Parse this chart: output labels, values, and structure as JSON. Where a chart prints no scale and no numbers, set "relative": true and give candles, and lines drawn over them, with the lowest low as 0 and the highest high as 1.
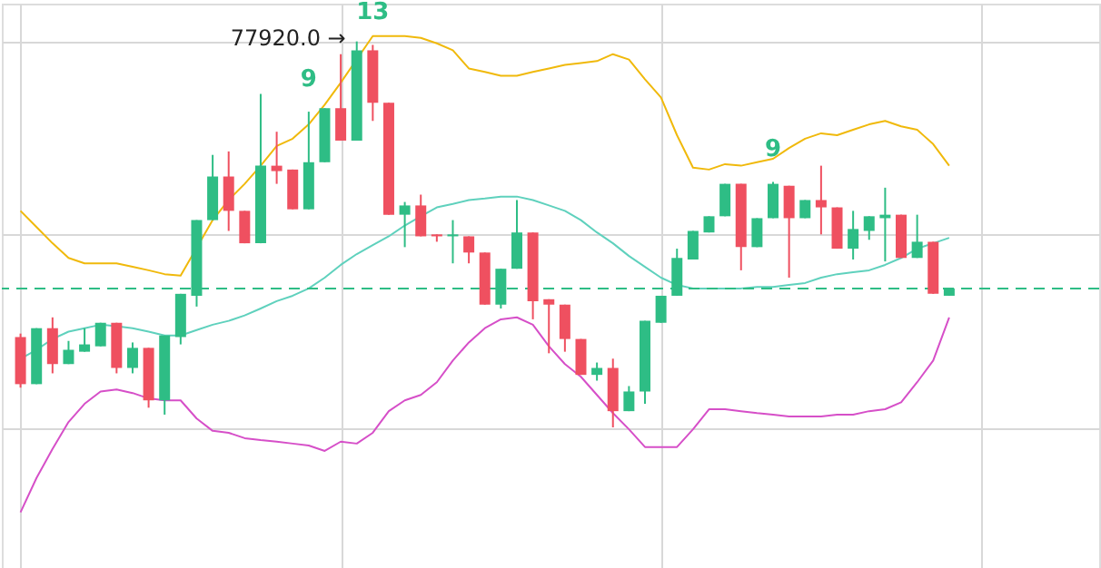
{
  "chart_data": {
    "type": "candlestick",
    "relative": true,
    "grid": true,
    "categories": [
      null,
      null,
      null,
      null,
      null,
      null,
      null,
      null,
      null,
      null,
      null,
      null,
      null,
      null,
      null,
      null,
      null,
      null,
      null,
      null,
      null,
      null,
      null,
      null,
      null,
      null,
      null,
      null,
      null,
      null,
      null,
      null,
      null,
      null,
      null,
      null,
      null,
      null,
      null,
      null,
      null,
      null,
      null,
      null,
      null,
      null,
      null,
      null,
      null,
      null,
      null,
      null,
      null,
      null,
      null,
      null,
      null,
      null,
      null
    ],
    "ohlc": [
      [
        0.234,
        0.243,
        0.103,
        0.112
      ],
      [
        0.112,
        0.257,
        0.112,
        0.257
      ],
      [
        0.257,
        0.285,
        0.14,
        0.164
      ],
      [
        0.164,
        0.224,
        0.164,
        0.201
      ],
      [
        0.196,
        0.257,
        0.196,
        0.215
      ],
      [
        0.21,
        0.271,
        0.21,
        0.271
      ],
      [
        0.271,
        0.271,
        0.14,
        0.154
      ],
      [
        0.154,
        0.22,
        0.14,
        0.206
      ],
      [
        0.206,
        0.206,
        0.051,
        0.07
      ],
      [
        0.07,
        0.238,
        0.033,
        0.238
      ],
      [
        0.234,
        0.346,
        0.215,
        0.346
      ],
      [
        0.341,
        0.537,
        0.313,
        0.537
      ],
      [
        0.537,
        0.706,
        0.537,
        0.65
      ],
      [
        0.65,
        0.715,
        0.509,
        0.561
      ],
      [
        0.561,
        0.561,
        0.477,
        0.477
      ],
      [
        0.477,
        0.864,
        0.477,
        0.678
      ],
      [
        0.678,
        0.766,
        0.631,
        0.664
      ],
      [
        0.668,
        0.668,
        0.565,
        0.565
      ],
      [
        0.565,
        0.818,
        0.565,
        0.687
      ],
      [
        0.687,
        0.827,
        0.687,
        0.827
      ],
      [
        0.827,
        0.967,
        0.743,
        0.743
      ],
      [
        0.743,
        1.0,
        0.743,
        0.977
      ],
      [
        0.977,
        0.991,
        0.794,
        0.841
      ],
      [
        0.841,
        0.841,
        0.551,
        0.551
      ],
      [
        0.551,
        0.584,
        0.467,
        0.575
      ],
      [
        0.575,
        0.603,
        0.495,
        0.495
      ],
      [
        0.5,
        0.5,
        0.481,
        0.495
      ],
      [
        0.495,
        0.537,
        0.425,
        0.5
      ],
      [
        0.495,
        0.495,
        0.425,
        0.453
      ],
      [
        0.453,
        0.453,
        0.318,
        0.318
      ],
      [
        0.318,
        0.411,
        0.308,
        0.411
      ],
      [
        0.411,
        0.589,
        0.411,
        0.505
      ],
      [
        0.505,
        0.505,
        0.28,
        0.327
      ],
      [
        0.332,
        0.332,
        0.192,
        0.318
      ],
      [
        0.318,
        0.318,
        0.196,
        0.229
      ],
      [
        0.229,
        0.229,
        0.136,
        0.136
      ],
      [
        0.136,
        0.168,
        0.121,
        0.154
      ],
      [
        0.154,
        0.178,
        0.0,
        0.042
      ],
      [
        0.042,
        0.107,
        0.042,
        0.093
      ],
      [
        0.093,
        0.276,
        0.061,
        0.276
      ],
      [
        0.271,
        0.341,
        0.271,
        0.341
      ],
      [
        0.341,
        0.463,
        0.341,
        0.439
      ],
      [
        0.435,
        0.509,
        0.435,
        0.509
      ],
      [
        0.505,
        0.547,
        0.505,
        0.547
      ],
      [
        0.547,
        0.631,
        0.547,
        0.631
      ],
      [
        0.631,
        0.631,
        0.407,
        0.467
      ],
      [
        0.467,
        0.542,
        0.467,
        0.542
      ],
      [
        0.542,
        0.636,
        0.542,
        0.631
      ],
      [
        0.626,
        0.626,
        0.388,
        0.542
      ],
      [
        0.542,
        0.589,
        0.542,
        0.589
      ],
      [
        0.589,
        0.678,
        0.5,
        0.57
      ],
      [
        0.57,
        0.57,
        0.463,
        0.463
      ],
      [
        0.463,
        0.561,
        0.435,
        0.514
      ],
      [
        0.509,
        0.547,
        0.486,
        0.547
      ],
      [
        0.542,
        0.621,
        0.43,
        0.551
      ],
      [
        0.551,
        0.551,
        0.439,
        0.439
      ],
      [
        0.439,
        0.551,
        0.439,
        0.481
      ],
      [
        0.481,
        0.481,
        0.346,
        0.346
      ],
      [
        0.341,
        0.36,
        0.341,
        0.36
      ]
    ],
    "colors": [
      "#ef5060",
      "#2ebd85",
      "#ef5060",
      "#2ebd85",
      "#2ebd85",
      "#2ebd85",
      "#ef5060",
      "#2ebd85",
      "#ef5060",
      "#2ebd85",
      "#2ebd85",
      "#2ebd85",
      "#2ebd85",
      "#ef5060",
      "#ef5060",
      "#2ebd85",
      "#ef5060",
      "#ef5060",
      "#2ebd85",
      "#2ebd85",
      "#ef5060",
      "#2ebd85",
      "#ef5060",
      "#ef5060",
      "#2ebd85",
      "#ef5060",
      "#ef5060",
      "#2ebd85",
      "#ef5060",
      "#ef5060",
      "#2ebd85",
      "#2ebd85",
      "#ef5060",
      "#ef5060",
      "#ef5060",
      "#ef5060",
      "#2ebd85",
      "#ef5060",
      "#2ebd85",
      "#2ebd85",
      "#2ebd85",
      "#2ebd85",
      "#2ebd85",
      "#2ebd85",
      "#2ebd85",
      "#ef5060",
      "#2ebd85",
      "#2ebd85",
      "#ef5060",
      "#2ebd85",
      "#ef5060",
      "#ef5060",
      "#2ebd85",
      "#2ebd85",
      "#2ebd85",
      "#ef5060",
      "#2ebd85",
      "#ef5060",
      "#2ebd85"
    ],
    "series": [
      {
        "type": "line",
        "color": "#f0b90b",
        "values": [
          0.561,
          0.519,
          0.477,
          0.439,
          0.425,
          0.425,
          0.425,
          0.416,
          0.407,
          0.397,
          0.393,
          null,
          0.537,
          0.589,
          0.631,
          0.678,
          0.729,
          0.748,
          0.785,
          0.836,
          0.893,
          null,
          1.014,
          1.014,
          1.014,
          1.009,
          0.995,
          0.977,
          0.93,
          0.921,
          0.911,
          0.911,
          0.921,
          0.93,
          0.939,
          0.944,
          0.949,
          0.967,
          0.953,
          0.902,
          0.855,
          0.757,
          0.673,
          0.668,
          0.682,
          0.678,
          0.687,
          0.696,
          0.724,
          0.748,
          0.762,
          0.757,
          0.771,
          0.785,
          0.794,
          0.78,
          0.771,
          0.734,
          0.678
        ]
      },
      {
        "type": "line",
        "color": "#5fd1bd",
        "values": [
          0.178,
          0.201,
          0.229,
          0.248,
          0.257,
          0.266,
          0.262,
          0.257,
          0.248,
          0.238,
          0.238,
          0.252,
          0.266,
          0.276,
          0.29,
          0.308,
          0.327,
          0.341,
          0.36,
          0.388,
          0.421,
          0.449,
          0.472,
          0.495,
          0.523,
          0.547,
          0.57,
          0.579,
          0.589,
          0.593,
          0.598,
          0.598,
          0.589,
          0.575,
          0.561,
          0.537,
          0.505,
          0.477,
          0.444,
          0.416,
          0.388,
          0.369,
          0.36,
          0.36,
          0.36,
          0.36,
          0.364,
          0.364,
          0.369,
          0.374,
          0.388,
          0.397,
          0.402,
          0.407,
          0.421,
          0.439,
          0.463,
          0.477,
          0.491
        ]
      },
      {
        "type": "line",
        "color": "#d64fc8",
        "values": [
          -0.22,
          -0.131,
          -0.056,
          0.014,
          0.061,
          0.093,
          0.098,
          0.089,
          0.075,
          0.07,
          0.07,
          0.023,
          -0.009,
          -0.014,
          -0.028,
          -0.033,
          -0.037,
          -0.042,
          -0.047,
          -0.061,
          -0.037,
          -0.042,
          -0.014,
          0.042,
          0.07,
          0.084,
          0.117,
          0.173,
          0.22,
          0.257,
          0.28,
          0.285,
          0.266,
          0.21,
          0.164,
          0.131,
          0.084,
          0.037,
          -0.005,
          -0.051,
          -0.051,
          -0.051,
          -0.005,
          0.047,
          0.047,
          0.042,
          0.037,
          0.033,
          0.028,
          0.028,
          0.028,
          0.033,
          0.033,
          0.042,
          0.047,
          0.065,
          0.117,
          0.173,
          0.285
        ]
      }
    ],
    "ref_lines": [
      {
        "axis": "y",
        "value": 0.36,
        "color": "#2ebd85",
        "line_style": "dashed"
      }
    ],
    "annotations": [
      "77920.0 →",
      {
        "text": "9",
        "y": 0.818
      },
      {
        "text": "13",
        "y": 0.991
      },
      {
        "text": "9",
        "y": 0.636
      }
    ]
  }
}
